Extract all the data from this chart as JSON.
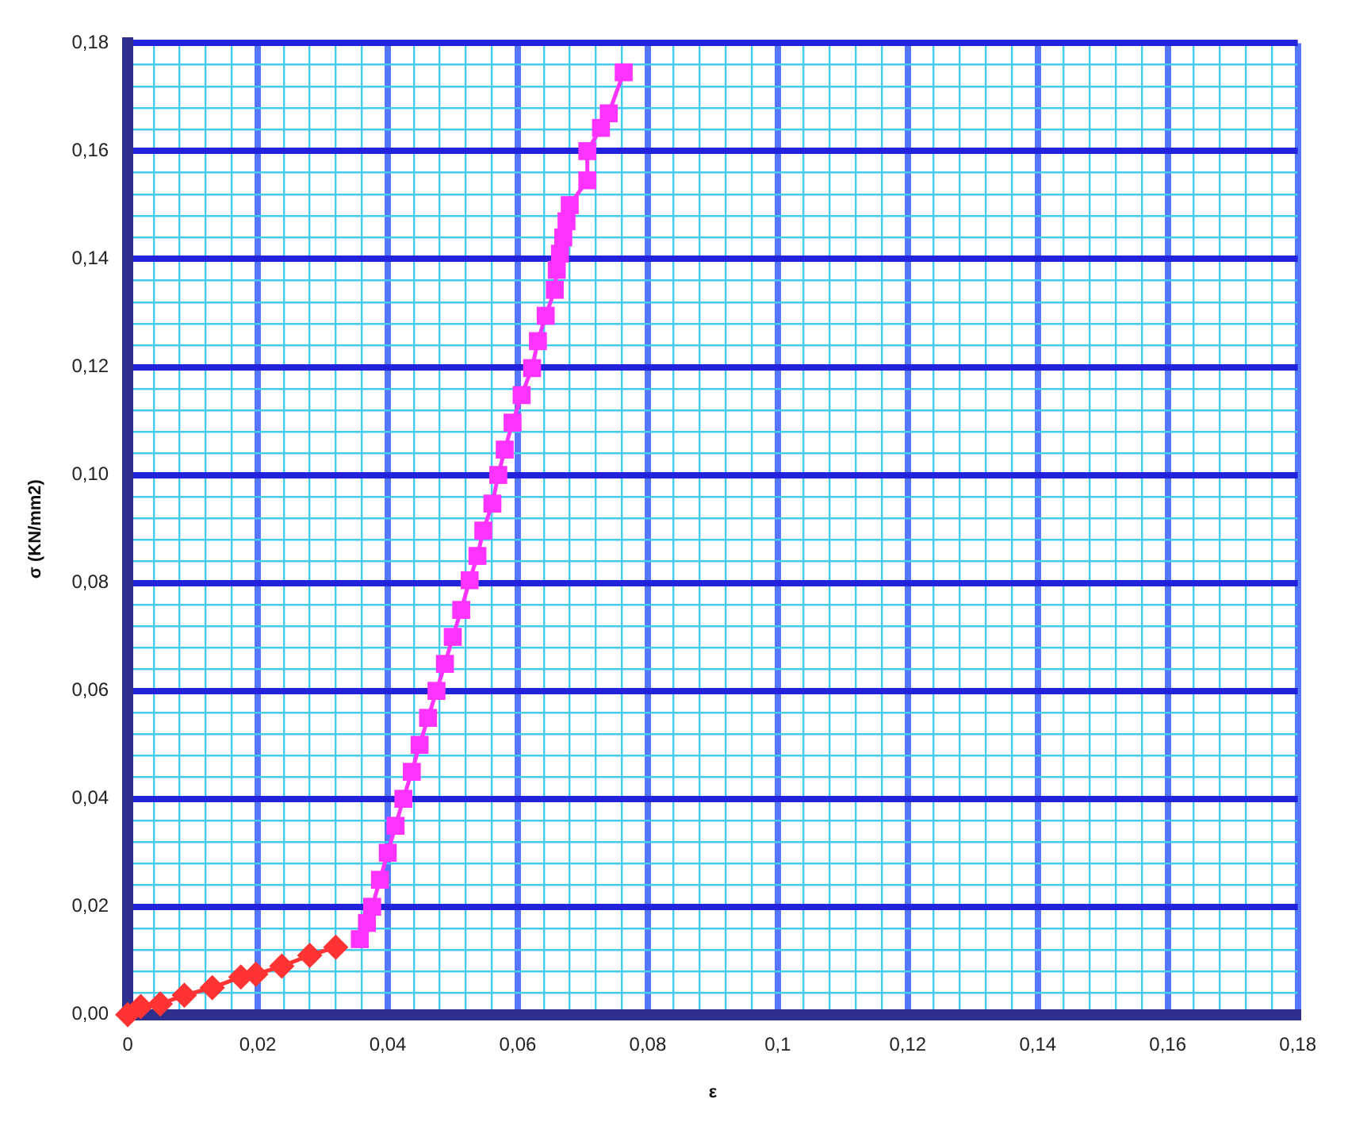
{
  "chart_data": {
    "type": "line",
    "xlabel": "ε",
    "ylabel": "σ (KN/mm2)",
    "xlim": [
      0,
      0.18
    ],
    "ylim": [
      0,
      0.18
    ],
    "xticks": [
      {
        "value": 0,
        "label": "0"
      },
      {
        "value": 0.004,
        "label": null
      },
      {
        "value": 0.008,
        "label": null
      },
      {
        "value": 0.012,
        "label": null
      },
      {
        "value": 0.016,
        "label": null
      },
      {
        "value": 0.02,
        "label": "0,02"
      },
      {
        "value": 0.024,
        "label": null
      },
      {
        "value": 0.028,
        "label": null
      },
      {
        "value": 0.032,
        "label": null
      },
      {
        "value": 0.036,
        "label": null
      },
      {
        "value": 0.04,
        "label": "0,04"
      },
      {
        "value": 0.044,
        "label": null
      },
      {
        "value": 0.048,
        "label": null
      },
      {
        "value": 0.052,
        "label": null
      },
      {
        "value": 0.056,
        "label": null
      },
      {
        "value": 0.06,
        "label": "0,06"
      },
      {
        "value": 0.064,
        "label": null
      },
      {
        "value": 0.068,
        "label": null
      },
      {
        "value": 0.072,
        "label": null
      },
      {
        "value": 0.076,
        "label": null
      },
      {
        "value": 0.08,
        "label": "0,08"
      },
      {
        "value": 0.084,
        "label": null
      },
      {
        "value": 0.088,
        "label": null
      },
      {
        "value": 0.092,
        "label": null
      },
      {
        "value": 0.096,
        "label": null
      },
      {
        "value": 0.1,
        "label": "0,1"
      },
      {
        "value": 0.104,
        "label": null
      },
      {
        "value": 0.108,
        "label": null
      },
      {
        "value": 0.112,
        "label": null
      },
      {
        "value": 0.116,
        "label": null
      },
      {
        "value": 0.12,
        "label": "0,12"
      },
      {
        "value": 0.124,
        "label": null
      },
      {
        "value": 0.128,
        "label": null
      },
      {
        "value": 0.132,
        "label": null
      },
      {
        "value": 0.136,
        "label": null
      },
      {
        "value": 0.14,
        "label": "0,14"
      },
      {
        "value": 0.144,
        "label": null
      },
      {
        "value": 0.148,
        "label": null
      },
      {
        "value": 0.152,
        "label": null
      },
      {
        "value": 0.156,
        "label": null
      },
      {
        "value": 0.16,
        "label": "0,16"
      },
      {
        "value": 0.164,
        "label": null
      },
      {
        "value": 0.168,
        "label": null
      },
      {
        "value": 0.172,
        "label": null
      },
      {
        "value": 0.176,
        "label": null
      },
      {
        "value": 0.18,
        "label": "0,18"
      }
    ],
    "yticks": [
      {
        "value": 0,
        "label": "0,00"
      },
      {
        "value": 0.004,
        "label": null
      },
      {
        "value": 0.008,
        "label": null
      },
      {
        "value": 0.012,
        "label": null
      },
      {
        "value": 0.016,
        "label": null
      },
      {
        "value": 0.02,
        "label": "0,02"
      },
      {
        "value": 0.024,
        "label": null
      },
      {
        "value": 0.028,
        "label": null
      },
      {
        "value": 0.032,
        "label": null
      },
      {
        "value": 0.036,
        "label": null
      },
      {
        "value": 0.04,
        "label": "0,04"
      },
      {
        "value": 0.044,
        "label": null
      },
      {
        "value": 0.048,
        "label": null
      },
      {
        "value": 0.052,
        "label": null
      },
      {
        "value": 0.056,
        "label": null
      },
      {
        "value": 0.06,
        "label": "0,06"
      },
      {
        "value": 0.064,
        "label": null
      },
      {
        "value": 0.068,
        "label": null
      },
      {
        "value": 0.072,
        "label": null
      },
      {
        "value": 0.076,
        "label": null
      },
      {
        "value": 0.08,
        "label": "0,08"
      },
      {
        "value": 0.084,
        "label": null
      },
      {
        "value": 0.088,
        "label": null
      },
      {
        "value": 0.092,
        "label": null
      },
      {
        "value": 0.096,
        "label": null
      },
      {
        "value": 0.1,
        "label": "0,10"
      },
      {
        "value": 0.104,
        "label": null
      },
      {
        "value": 0.108,
        "label": null
      },
      {
        "value": 0.112,
        "label": null
      },
      {
        "value": 0.116,
        "label": null
      },
      {
        "value": 0.12,
        "label": "0,12"
      },
      {
        "value": 0.124,
        "label": null
      },
      {
        "value": 0.128,
        "label": null
      },
      {
        "value": 0.132,
        "label": null
      },
      {
        "value": 0.136,
        "label": null
      },
      {
        "value": 0.14,
        "label": "0,14"
      },
      {
        "value": 0.144,
        "label": null
      },
      {
        "value": 0.148,
        "label": null
      },
      {
        "value": 0.152,
        "label": null
      },
      {
        "value": 0.156,
        "label": null
      },
      {
        "value": 0.16,
        "label": "0,16"
      },
      {
        "value": 0.164,
        "label": null
      },
      {
        "value": 0.168,
        "label": null
      },
      {
        "value": 0.172,
        "label": null
      },
      {
        "value": 0.176,
        "label": null
      },
      {
        "value": 0.18,
        "label": "0,18"
      }
    ],
    "grid": true,
    "legend": false,
    "line_style": "solid",
    "series": [
      {
        "color": "#ff3333",
        "marker": "diamond",
        "x": [
          0,
          0.002,
          0.005,
          0.0087,
          0.013,
          0.0174,
          0.0197,
          0.0237,
          0.028,
          0.032
        ],
        "values": [
          0,
          0.0015,
          0.002,
          0.0036,
          0.005,
          0.007,
          0.0075,
          0.009,
          0.011,
          0.0125
        ]
      },
      {
        "color": "#ff33ff",
        "marker": "square",
        "x": [
          0.0357,
          0.0368,
          0.0376,
          0.0388,
          0.04,
          0.0412,
          0.0424,
          0.0437,
          0.0449,
          0.0462,
          0.0475,
          0.0488,
          0.05,
          0.0513,
          0.0526,
          0.0538,
          0.0547,
          0.0561,
          0.057,
          0.058,
          0.0592,
          0.0606,
          0.0622,
          0.0631,
          0.0643,
          0.0657,
          0.066,
          0.0665,
          0.067,
          0.0675,
          0.068,
          0.0707,
          0.0707,
          0.0728,
          0.074,
          0.0763
        ],
        "values": [
          0.014,
          0.017,
          0.02,
          0.025,
          0.03,
          0.035,
          0.04,
          0.045,
          0.05,
          0.055,
          0.06,
          0.065,
          0.07,
          0.075,
          0.0805,
          0.085,
          0.0897,
          0.0947,
          0.1,
          0.1047,
          0.1097,
          0.1148,
          0.1198,
          0.1248,
          0.1295,
          0.1343,
          0.138,
          0.141,
          0.144,
          0.147,
          0.15,
          0.1546,
          0.16,
          0.1643,
          0.167,
          0.1746
        ]
      }
    ]
  }
}
